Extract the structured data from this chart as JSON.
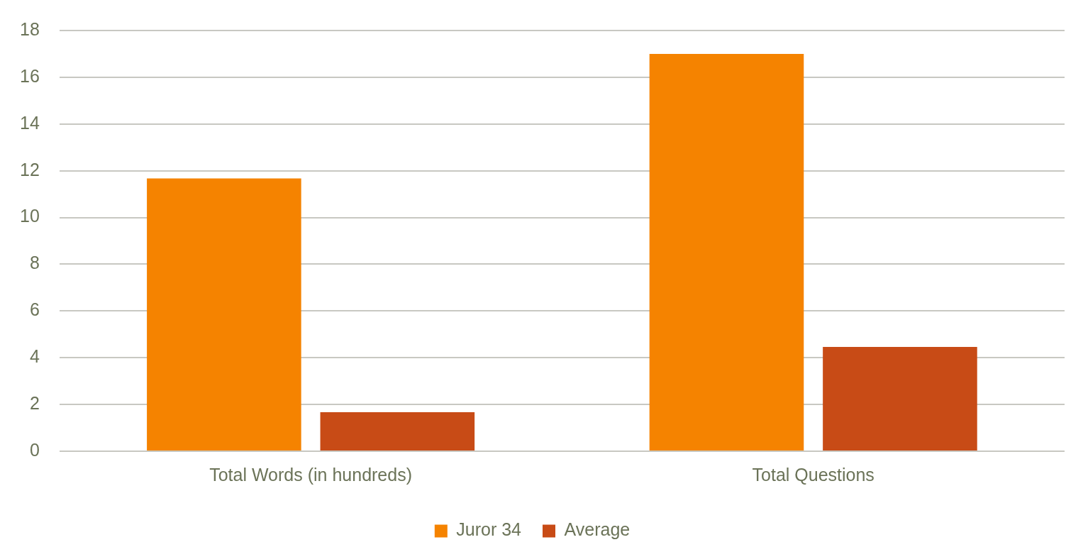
{
  "chart_data": {
    "type": "bar",
    "categories": [
      "Total Words (in hundreds)",
      "Total Questions"
    ],
    "series": [
      {
        "name": "Juror 34",
        "color": "#f58300",
        "values": [
          11.67,
          17
        ]
      },
      {
        "name": "Average",
        "color": "#c84b16",
        "values": [
          1.67,
          4.46
        ]
      }
    ],
    "ylim": [
      0,
      18
    ],
    "yticks": [
      0,
      2,
      4,
      6,
      8,
      10,
      12,
      14,
      16,
      18
    ],
    "grid": "y",
    "legend": "bottom"
  }
}
